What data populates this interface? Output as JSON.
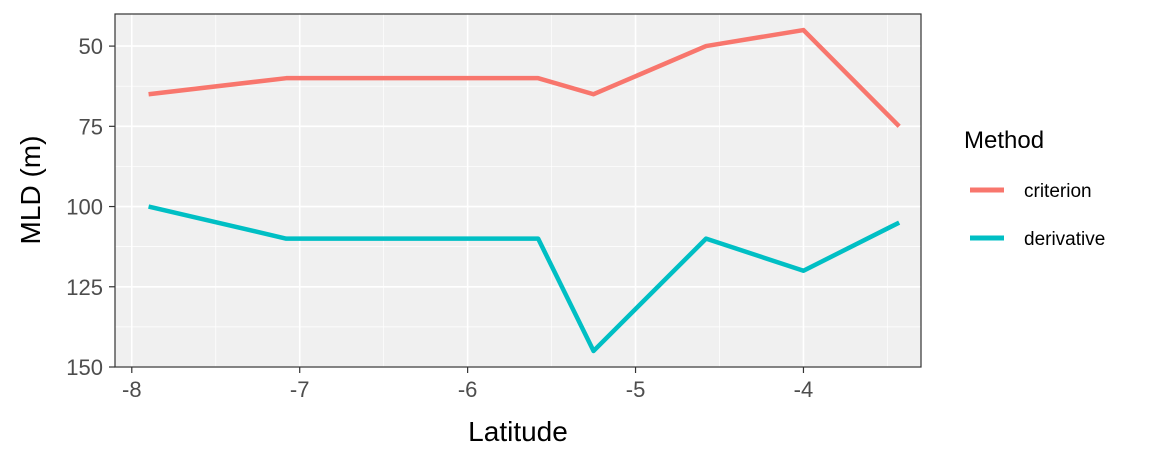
{
  "chart_data": {
    "type": "line",
    "xlabel": "Latitude",
    "ylabel": "MLD (m)",
    "y_reversed": true,
    "xlim": [
      -8.1,
      -3.3
    ],
    "ylim": [
      40,
      150
    ],
    "x_ticks": [
      -8,
      -7,
      -6,
      -5,
      -4
    ],
    "x_tick_labels": [
      "-8",
      "-7",
      "-6",
      "-5",
      "-4"
    ],
    "y_ticks": [
      50,
      75,
      100,
      125,
      150
    ],
    "y_tick_labels": [
      "50",
      "75",
      "100",
      "125",
      "150"
    ],
    "grid": true,
    "legend_placement": "right",
    "legend_title": "Method",
    "series": [
      {
        "name": "criterion",
        "color": "#F8766D",
        "x": [
          -7.9,
          -7.08,
          -5.58,
          -5.25,
          -4.58,
          -4.0,
          -3.43
        ],
        "y": [
          65,
          60,
          60,
          65,
          50,
          45,
          75
        ]
      },
      {
        "name": "derivative",
        "color": "#00BFC4",
        "x": [
          -7.9,
          -7.08,
          -5.58,
          -5.25,
          -4.58,
          -4.0,
          -3.43
        ],
        "y": [
          100,
          110,
          110,
          145,
          110,
          120,
          105
        ]
      }
    ]
  }
}
